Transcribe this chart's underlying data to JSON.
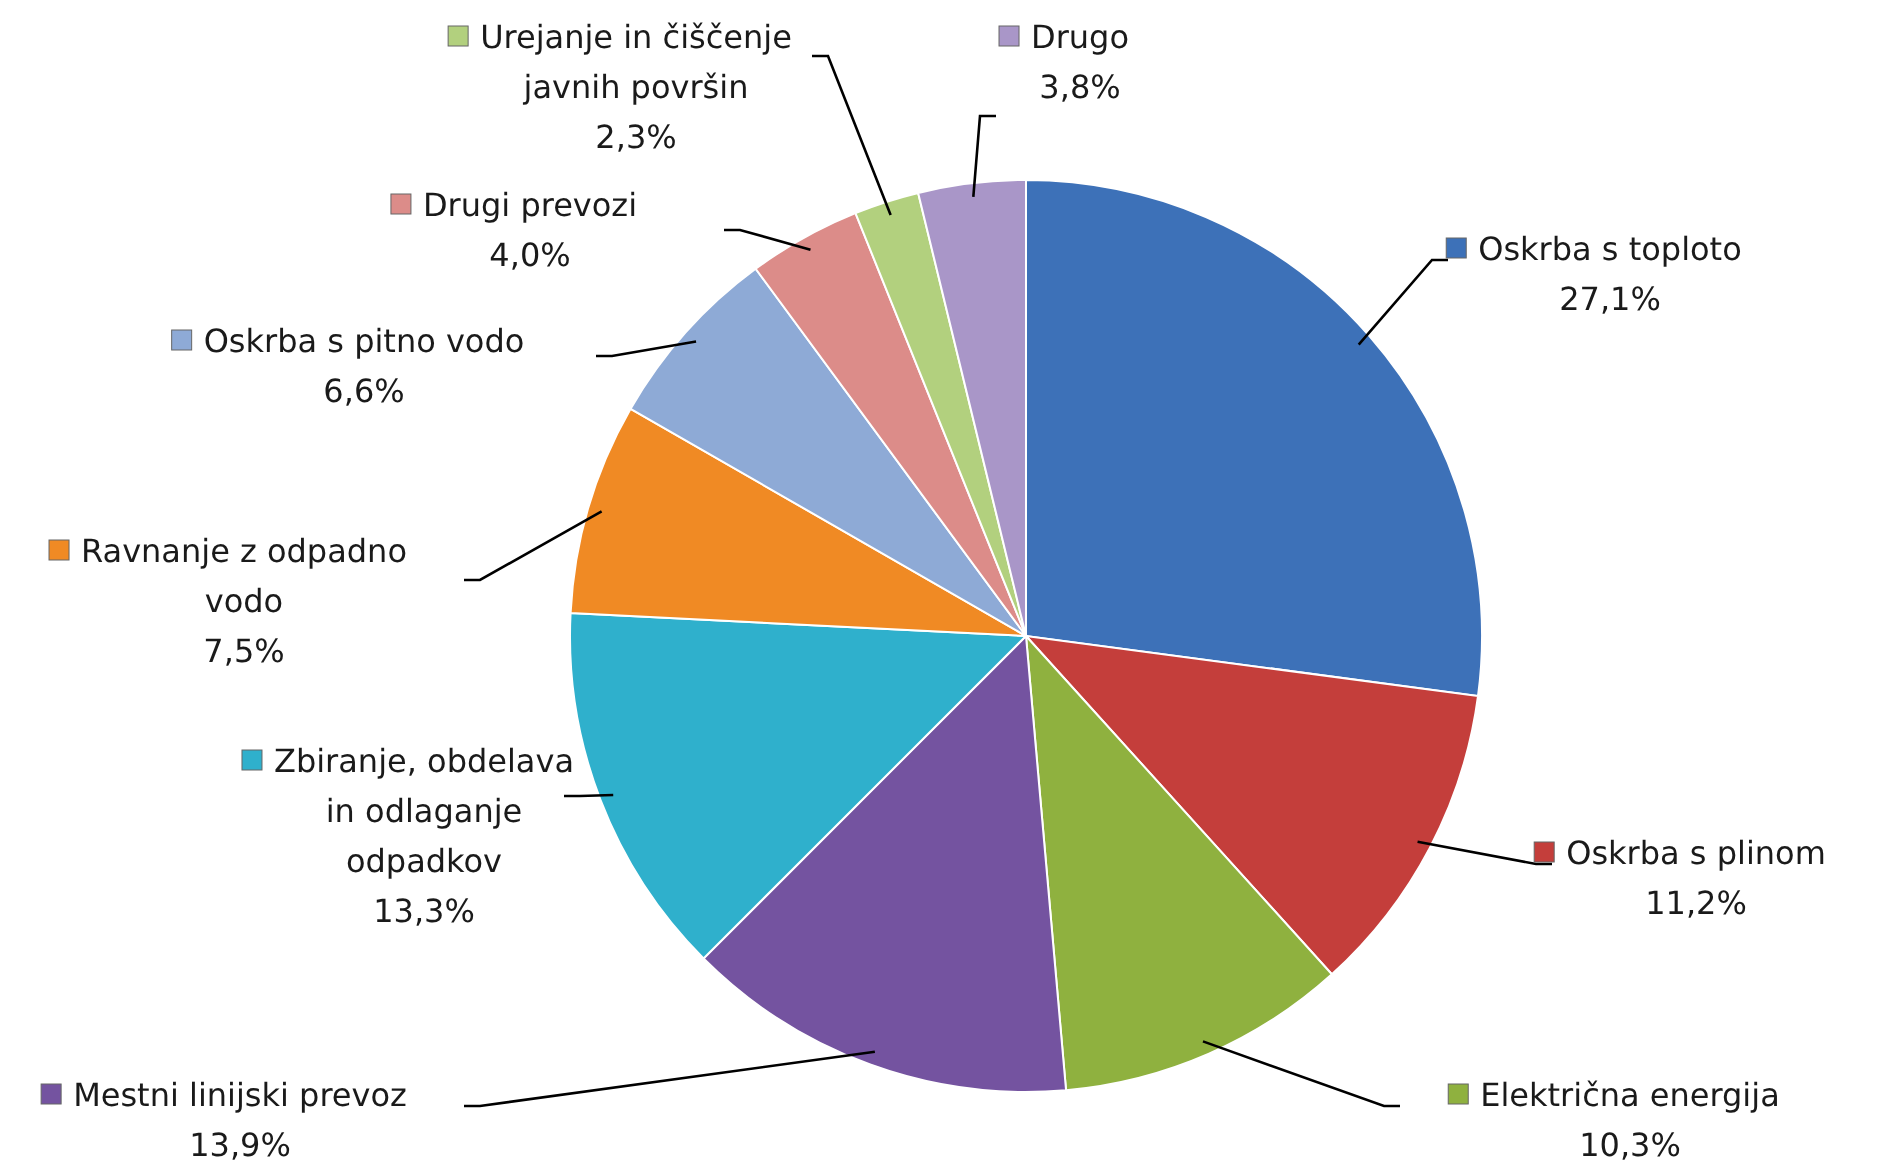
{
  "chart_data": {
    "type": "pie",
    "categories": [
      "Oskrba s toploto",
      "Oskrba s plinom",
      "Električna energija",
      "Mestni linijski prevoz",
      "Zbiranje, obdelava in odlaganje odpadkov",
      "Ravnanje z odpadno vodo",
      "Oskrba s pitno vodo",
      "Drugi prevozi",
      "Urejanje in čiščenje javnih površin",
      "Drugo"
    ],
    "values": [
      27.1,
      11.2,
      10.3,
      13.9,
      13.3,
      7.5,
      6.6,
      4.0,
      2.3,
      3.8
    ],
    "colors": [
      "#3d71b8",
      "#c43e3b",
      "#8fb13f",
      "#7453a0",
      "#2fb0cc",
      "#f08a24",
      "#8eaad6",
      "#dc8c89",
      "#b2d07e",
      "#a996c8"
    ],
    "value_labels": [
      "27,1%",
      "11,2%",
      "10,3%",
      "13,9%",
      "13,3%",
      "7,5%",
      "6,6%",
      "4,0%",
      "2,3%",
      "3,8%"
    ],
    "legend": "top left"
  }
}
